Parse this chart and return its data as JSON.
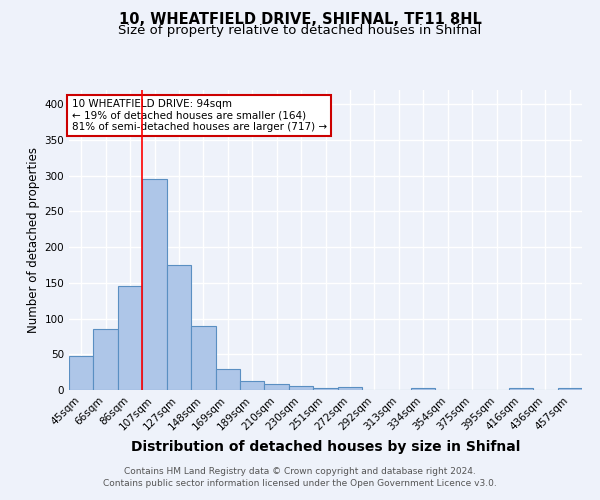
{
  "title": "10, WHEATFIELD DRIVE, SHIFNAL, TF11 8HL",
  "subtitle": "Size of property relative to detached houses in Shifnal",
  "xlabel": "Distribution of detached houses by size in Shifnal",
  "ylabel": "Number of detached properties",
  "bin_labels": [
    "45sqm",
    "66sqm",
    "86sqm",
    "107sqm",
    "127sqm",
    "148sqm",
    "169sqm",
    "189sqm",
    "210sqm",
    "230sqm",
    "251sqm",
    "272sqm",
    "292sqm",
    "313sqm",
    "334sqm",
    "354sqm",
    "375sqm",
    "395sqm",
    "416sqm",
    "436sqm",
    "457sqm"
  ],
  "bar_heights": [
    47,
    86,
    145,
    296,
    175,
    90,
    30,
    13,
    8,
    5,
    3,
    4,
    0,
    0,
    3,
    0,
    0,
    0,
    3,
    0,
    3
  ],
  "bar_color": "#aec6e8",
  "bar_edge_color": "#5a8fc2",
  "ylim": [
    0,
    420
  ],
  "yticks": [
    0,
    50,
    100,
    150,
    200,
    250,
    300,
    350,
    400
  ],
  "red_line_x": 2.5,
  "annotation_text": "10 WHEATFIELD DRIVE: 94sqm\n← 19% of detached houses are smaller (164)\n81% of semi-detached houses are larger (717) →",
  "annotation_box_color": "#ffffff",
  "annotation_border_color": "#cc0000",
  "footer_line1": "Contains HM Land Registry data © Crown copyright and database right 2024.",
  "footer_line2": "Contains public sector information licensed under the Open Government Licence v3.0.",
  "background_color": "#eef2fa",
  "grid_color": "#ffffff",
  "title_fontsize": 10.5,
  "subtitle_fontsize": 9.5,
  "xlabel_fontsize": 10,
  "ylabel_fontsize": 8.5,
  "tick_fontsize": 7.5,
  "footer_fontsize": 6.5,
  "annotation_fontsize": 7.5
}
